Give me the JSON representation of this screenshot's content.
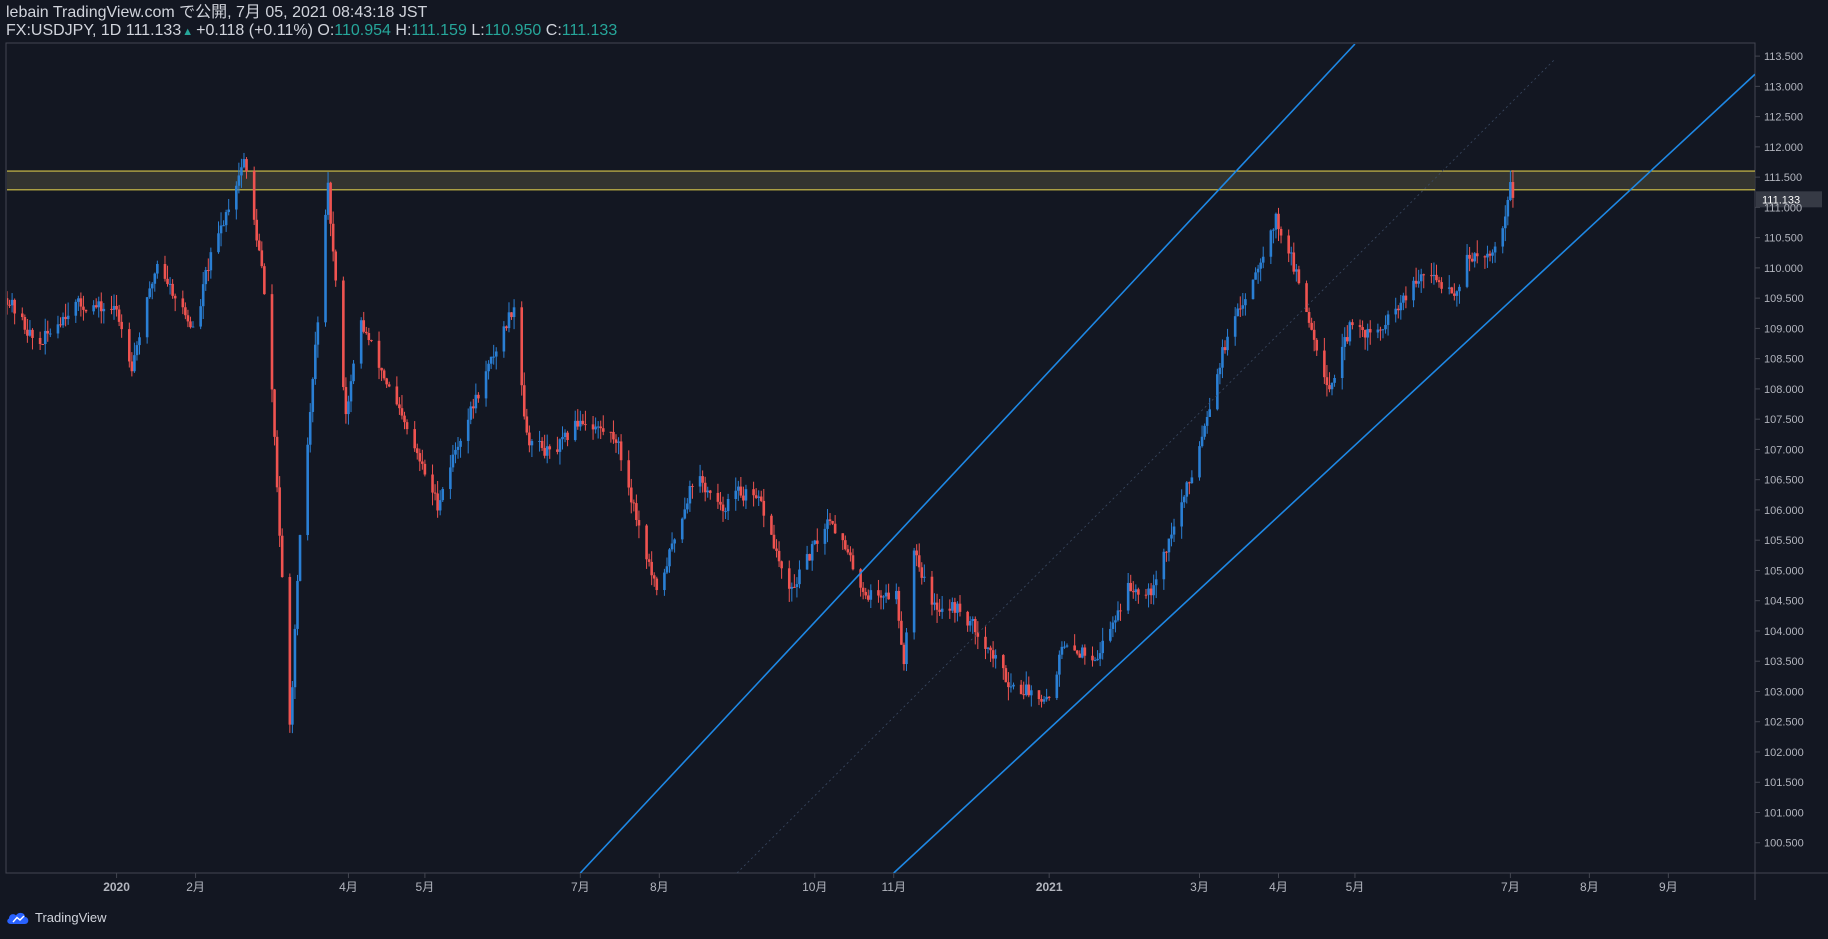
{
  "header": {
    "line1": "lebain TradingView.com で公開, 7月 05, 2021 08:43:18 JST",
    "symbol": "FX:USDJPY, 1D",
    "price": "111.133",
    "change": "+0.118 (+0.11%)",
    "o_label": "O:",
    "o_value": "110.954",
    "h_label": "H:",
    "h_value": "111.159",
    "l_label": "L:",
    "l_value": "110.950",
    "c_label": "C:",
    "c_value": "111.133"
  },
  "footer": {
    "brand": "TradingView",
    "icon": "tradingview-cloud-icon"
  },
  "colors": {
    "background": "#131722",
    "up": "#2a7fd4",
    "down": "#ef5350",
    "channel": "#1e88e5",
    "zone_border": "#d4c44a",
    "zone_fill": "#3a3a32",
    "axis_text": "#b2b5be",
    "price_tag_bg": "#363a45"
  },
  "chart_data": {
    "type": "candlestick",
    "symbol": "FX:USDJPY",
    "interval": "1D",
    "ylim": [
      100.0,
      113.7
    ],
    "y_ticks": [
      "113.500",
      "113.000",
      "112.500",
      "112.000",
      "111.500",
      "111.133",
      "111.000",
      "110.500",
      "110.000",
      "109.500",
      "109.000",
      "108.500",
      "108.000",
      "107.500",
      "107.000",
      "106.500",
      "106.000",
      "105.500",
      "105.000",
      "104.500",
      "104.000",
      "103.500",
      "103.000",
      "102.500",
      "102.000",
      "101.500",
      "101.000",
      "100.500"
    ],
    "last_price": "111.133",
    "x_ticks": [
      "2020",
      "2月",
      "4月",
      "5月",
      "7月",
      "8月",
      "10月",
      "11月",
      "2021",
      "3月",
      "4月",
      "5月",
      "7月",
      "8月",
      "9月"
    ],
    "x_range": [
      "2019-11-19",
      "2021-10-05"
    ],
    "tick_dates": [
      "2020-01-01",
      "2020-02-01",
      "2020-04-01",
      "2020-05-01",
      "2020-07-01",
      "2020-08-01",
      "2020-10-01",
      "2020-11-01",
      "2021-01-01",
      "2021-03-01",
      "2021-04-01",
      "2021-05-01",
      "2021-07-01",
      "2021-08-01",
      "2021-09-01"
    ],
    "close_path": [
      [
        "2019-11-19",
        109.5
      ],
      [
        "2019-12-01",
        108.7
      ],
      [
        "2019-12-15",
        109.4
      ],
      [
        "2020-01-01",
        109.3
      ],
      [
        "2020-01-07",
        108.4
      ],
      [
        "2020-01-17",
        110.1
      ],
      [
        "2020-02-01",
        108.9
      ],
      [
        "2020-02-05",
        109.9
      ],
      [
        "2020-02-20",
        111.8
      ],
      [
        "2020-02-27",
        110.0
      ],
      [
        "2020-03-02",
        108.0
      ],
      [
        "2020-03-09",
        102.4
      ],
      [
        "2020-03-13",
        105.5
      ],
      [
        "2020-03-24",
        111.3
      ],
      [
        "2020-03-31",
        107.6
      ],
      [
        "2020-04-06",
        109.1
      ],
      [
        "2020-04-21",
        107.6
      ],
      [
        "2020-05-06",
        106.1
      ],
      [
        "2020-05-13",
        107.0
      ],
      [
        "2020-06-05",
        109.4
      ],
      [
        "2020-06-10",
        107.2
      ],
      [
        "2020-06-20",
        106.9
      ],
      [
        "2020-07-01",
        107.5
      ],
      [
        "2020-07-15",
        107.2
      ],
      [
        "2020-07-31",
        104.6
      ],
      [
        "2020-08-15",
        106.6
      ],
      [
        "2020-08-25",
        106.0
      ],
      [
        "2020-09-01",
        106.3
      ],
      [
        "2020-09-10",
        106.1
      ],
      [
        "2020-09-21",
        104.6
      ],
      [
        "2020-10-07",
        105.9
      ],
      [
        "2020-10-21",
        104.6
      ],
      [
        "2020-11-02",
        104.6
      ],
      [
        "2020-11-05",
        103.5
      ],
      [
        "2020-11-09",
        105.4
      ],
      [
        "2020-11-16",
        104.4
      ],
      [
        "2020-11-25",
        104.4
      ],
      [
        "2020-12-04",
        104.0
      ],
      [
        "2020-12-17",
        103.1
      ],
      [
        "2021-01-01",
        102.9
      ],
      [
        "2021-01-06",
        103.7
      ],
      [
        "2021-01-20",
        103.6
      ],
      [
        "2021-02-01",
        104.7
      ],
      [
        "2021-02-10",
        104.7
      ],
      [
        "2021-02-18",
        105.6
      ],
      [
        "2021-02-26",
        106.6
      ],
      [
        "2021-03-10",
        108.6
      ],
      [
        "2021-03-31",
        110.8
      ],
      [
        "2021-04-05",
        110.3
      ],
      [
        "2021-04-21",
        108.0
      ],
      [
        "2021-04-29",
        109.0
      ],
      [
        "2021-05-10",
        108.9
      ],
      [
        "2021-05-28",
        109.9
      ],
      [
        "2021-06-10",
        109.6
      ],
      [
        "2021-06-14",
        110.2
      ],
      [
        "2021-06-21",
        110.1
      ],
      [
        "2021-06-28",
        110.6
      ],
      [
        "2021-07-01",
        111.5
      ],
      [
        "2021-07-02",
        111.13
      ]
    ],
    "horizontal_zone": [
      111.29,
      111.6
    ],
    "channel_lines": [
      {
        "role": "upper",
        "points": [
          [
            "2020-07-01",
            100.0
          ],
          [
            "2021-05-01",
            113.7
          ]
        ]
      },
      {
        "role": "lower",
        "points": [
          [
            "2020-11-01",
            100.0
          ],
          [
            "2021-10-05",
            113.2
          ]
        ]
      }
    ]
  }
}
